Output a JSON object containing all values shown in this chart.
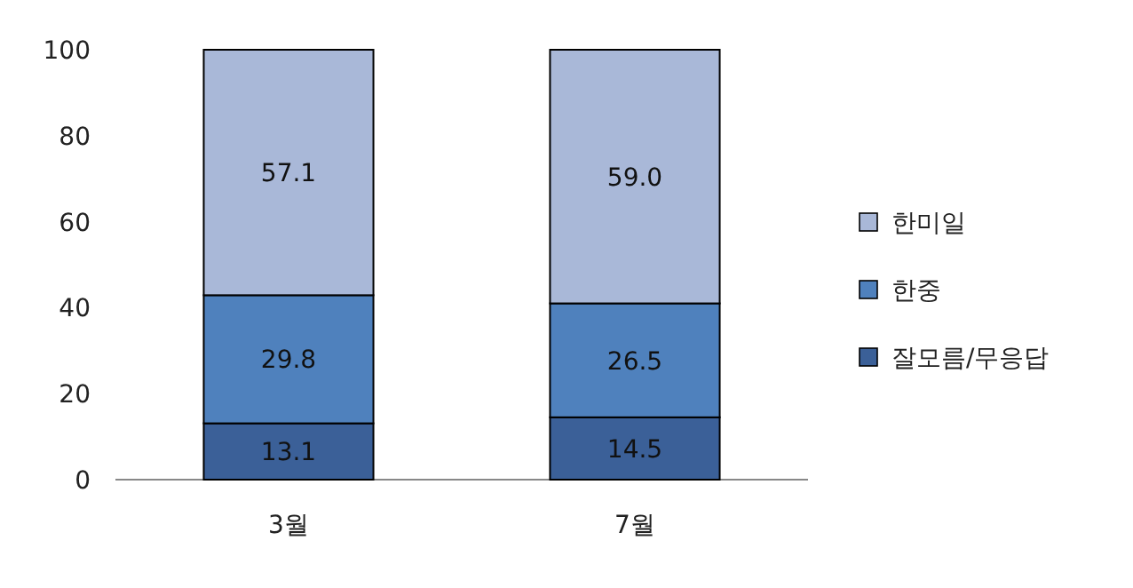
{
  "chart_data": {
    "type": "bar",
    "stacked": true,
    "categories": [
      "3월",
      "7월"
    ],
    "series": [
      {
        "name": "잘모름/무응답",
        "color": "#3b6098",
        "values": [
          13.1,
          14.5
        ],
        "value_labels": [
          "13.1",
          "14.5"
        ]
      },
      {
        "name": "한중",
        "color": "#4f81bd",
        "values": [
          29.8,
          26.5
        ],
        "value_labels": [
          "29.8",
          "26.5"
        ]
      },
      {
        "name": "한미일",
        "color": "#a9b8d8",
        "values": [
          57.1,
          59.0
        ],
        "value_labels": [
          "57.1",
          "59.0"
        ]
      }
    ],
    "ylim": [
      0,
      100
    ],
    "yticks": [
      0,
      20,
      40,
      60,
      80,
      100
    ],
    "legend": "right"
  }
}
